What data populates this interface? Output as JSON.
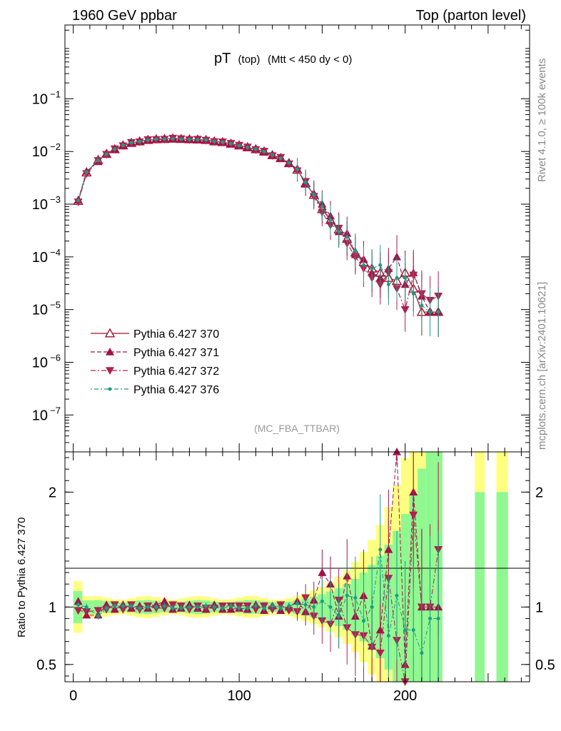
{
  "header": {
    "left": "1960 GeV ppbar",
    "right": "Top (parton level)",
    "side_top": "Rivet 4.1.0, ≥ 100k events",
    "side_bottom": "mcplots.cern.ch [arXiv:2401.10621]",
    "watermark": "(MC_FBA_TTBAR)"
  },
  "colors": {
    "s370": "#a0142a",
    "s371": "#a3104a",
    "s372": "#b0204e",
    "s376": "#1f9a85",
    "band_yellow": "#ffff80",
    "band_green": "#90f890"
  },
  "chart_data": {
    "type": "line",
    "title_main": "pT",
    "title_sub1": "(top)",
    "title_sub2": "(Mtt < 450 dy < 0)",
    "xlim": [
      -5,
      275
    ],
    "ylim_log": [
      -7.7,
      0.4
    ],
    "ratio_ylabel": "Ratio to Pythia 6.427 370",
    "ratio_ylim": [
      0.35,
      2.35
    ],
    "x_ticks": [
      {
        "v": 0,
        "label": "0"
      },
      {
        "v": 100,
        "label": "100"
      },
      {
        "v": 200,
        "label": "200"
      }
    ],
    "y_ticks": [
      {
        "e": -1,
        "label": "10",
        "sup": "−1"
      },
      {
        "e": -2,
        "label": "10",
        "sup": "−2"
      },
      {
        "e": -3,
        "label": "10",
        "sup": "−3"
      },
      {
        "e": -4,
        "label": "10",
        "sup": "−4"
      },
      {
        "e": -5,
        "label": "10",
        "sup": "−5"
      },
      {
        "e": -6,
        "label": "10",
        "sup": "−6"
      },
      {
        "e": -7,
        "label": "10",
        "sup": "−7"
      }
    ],
    "ratio_ticks": [
      {
        "v": 0.5,
        "label": "0.5"
      },
      {
        "v": 1,
        "label": "1"
      },
      {
        "v": 2,
        "label": "2"
      }
    ],
    "x": [
      3,
      8,
      15,
      20,
      25,
      30,
      35,
      40,
      45,
      50,
      55,
      60,
      65,
      70,
      75,
      80,
      85,
      90,
      95,
      100,
      105,
      110,
      115,
      120,
      125,
      130,
      135,
      140,
      145,
      150,
      155,
      160,
      165,
      170,
      175,
      180,
      185,
      190,
      195,
      200,
      205,
      210,
      215,
      220
    ],
    "series": [
      {
        "name": "Pythia 6.427 370",
        "key": "s370",
        "values": [
          0.00115,
          0.004,
          0.0069,
          0.009,
          0.011,
          0.013,
          0.0145,
          0.0155,
          0.0165,
          0.017,
          0.0172,
          0.0175,
          0.0172,
          0.017,
          0.0168,
          0.0165,
          0.0155,
          0.015,
          0.014,
          0.013,
          0.012,
          0.011,
          0.01,
          0.0085,
          0.0075,
          0.006,
          0.0045,
          0.0025,
          0.0015,
          0.0008,
          0.0005,
          0.00033,
          0.00022,
          0.00012,
          8e-05,
          6e-05,
          5e-05,
          4e-05,
          3.5e-05,
          5e-05,
          2.5e-05,
          9e-06,
          9e-06,
          9e-06
        ]
      },
      {
        "name": "Pythia 6.427 371",
        "key": "s371",
        "values": [
          0.0012,
          0.0042,
          0.0064,
          0.0092,
          0.0108,
          0.0132,
          0.0143,
          0.0157,
          0.0163,
          0.0173,
          0.0176,
          0.0172,
          0.017,
          0.0172,
          0.0166,
          0.0162,
          0.0158,
          0.0148,
          0.0138,
          0.0128,
          0.0118,
          0.0112,
          0.0097,
          0.0086,
          0.0073,
          0.006,
          0.0047,
          0.0024,
          0.0016,
          0.001,
          0.0006,
          0.0003,
          0.00028,
          0.00011,
          9e-05,
          5e-05,
          4e-05,
          6e-05,
          0.0001,
          3e-05,
          5e-05,
          1.8e-05,
          9e-06,
          9e-06
        ]
      },
      {
        "name": "Pythia 6.427 372",
        "key": "s372",
        "values": [
          0.0011,
          0.0038,
          0.0067,
          0.0088,
          0.0112,
          0.0128,
          0.0148,
          0.0152,
          0.0167,
          0.0168,
          0.017,
          0.0178,
          0.0174,
          0.0167,
          0.017,
          0.0163,
          0.0153,
          0.0152,
          0.0142,
          0.0131,
          0.0121,
          0.0108,
          0.0101,
          0.0083,
          0.0077,
          0.0058,
          0.0043,
          0.0027,
          0.0014,
          0.0007,
          0.0004,
          0.00035,
          0.00018,
          0.0001,
          6e-05,
          4e-05,
          3e-05,
          5e-05,
          2.5e-05,
          1e-05,
          4.5e-05,
          2e-05,
          1.5e-05,
          1.8e-05
        ]
      },
      {
        "name": "Pythia 6.427 376",
        "key": "s376",
        "values": [
          0.00118,
          0.0041,
          0.0068,
          0.0089,
          0.0111,
          0.0131,
          0.0146,
          0.0154,
          0.0164,
          0.0171,
          0.0173,
          0.0174,
          0.0171,
          0.0169,
          0.0167,
          0.0166,
          0.0156,
          0.0149,
          0.0141,
          0.0129,
          0.0119,
          0.0111,
          0.0099,
          0.0086,
          0.0074,
          0.0061,
          0.0046,
          0.0026,
          0.0015,
          0.0009,
          0.0005,
          0.0003,
          0.00024,
          0.00013,
          7e-05,
          6e-05,
          7e-05,
          3e-05,
          4e-05,
          4e-05,
          2e-05,
          1.2e-05,
          9e-06,
          9e-06
        ]
      }
    ],
    "ratios": {
      "s371": [
        1.05,
        0.93,
        0.93,
        1.02,
        0.98,
        1.02,
        0.99,
        1.01,
        0.99,
        1.02,
        1.05,
        0.98,
        0.99,
        1.02,
        0.99,
        0.98,
        1.02,
        0.98,
        0.98,
        0.99,
        0.98,
        1.02,
        0.97,
        1.01,
        0.97,
        1.0,
        1.05,
        0.96,
        1.06,
        1.3,
        1.2,
        0.92,
        1.27,
        0.92,
        1.1,
        0.66,
        0.8,
        1.5,
        2.8,
        0.5,
        2.0,
        1.0,
        1.0,
        1.0
      ],
      "s372": [
        0.97,
        0.96,
        0.97,
        0.98,
        1.02,
        0.98,
        1.02,
        0.98,
        1.01,
        0.99,
        0.99,
        1.02,
        1.01,
        0.98,
        1.01,
        0.99,
        0.99,
        1.01,
        1.01,
        1.01,
        1.01,
        0.98,
        1.01,
        0.98,
        1.02,
        0.97,
        0.96,
        1.08,
        0.92,
        0.88,
        0.85,
        1.06,
        0.82,
        0.76,
        0.75,
        0.65,
        0.6,
        1.25,
        0.71,
        0.2,
        1.8,
        1.0,
        1.0,
        1.5
      ],
      "s376": [
        1.02,
        1.0,
        0.92,
        0.99,
        1.01,
        1.01,
        1.01,
        0.99,
        1.0,
        1.0,
        1.01,
        0.99,
        0.99,
        1.0,
        1.0,
        1.01,
        1.0,
        0.99,
        1.01,
        0.99,
        0.99,
        1.01,
        0.99,
        1.01,
        0.99,
        1.01,
        1.03,
        1.02,
        1.0,
        1.05,
        1.0,
        0.92,
        1.1,
        1.08,
        0.88,
        1.0,
        1.5,
        0.75,
        1.1,
        0.8,
        0.8,
        0.6,
        0.9,
        0.9
      ]
    },
    "legend": [
      {
        "label": "Pythia 6.427 370",
        "key": "s370",
        "marker": "open-triangle-up",
        "dash": "solid"
      },
      {
        "label": "Pythia 6.427 371",
        "key": "s371",
        "marker": "triangle-up",
        "dash": "dashed"
      },
      {
        "label": "Pythia 6.427 372",
        "key": "s372",
        "marker": "triangle-down",
        "dash": "dashdot"
      },
      {
        "label": "Pythia 6.427 376",
        "key": "s376",
        "marker": "dot",
        "dash": "dotdash"
      }
    ]
  }
}
